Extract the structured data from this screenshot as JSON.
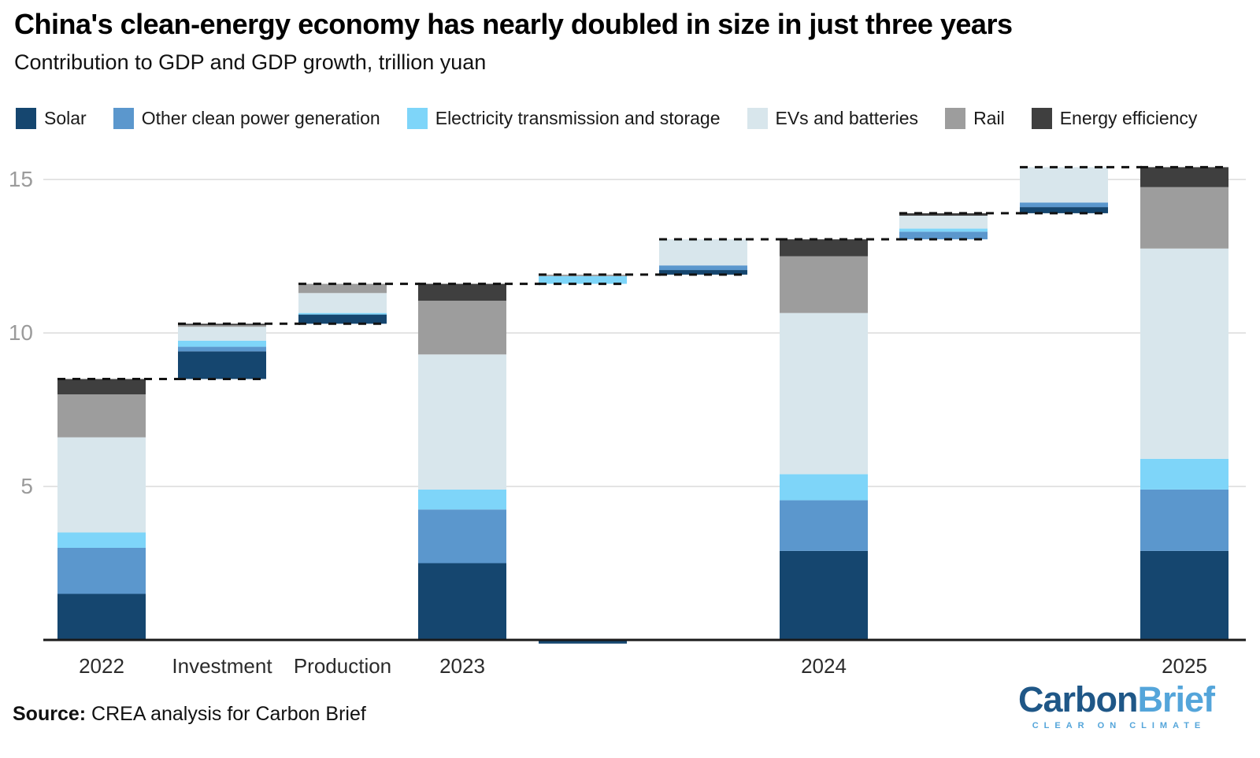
{
  "header": {
    "title": "China's clean-energy economy has nearly doubled in size in just three years",
    "subtitle": "Contribution to GDP and GDP growth, trillion yuan"
  },
  "legend": [
    {
      "label": "Solar",
      "color": "#15466f"
    },
    {
      "label": "Other clean power generation",
      "color": "#5b97cd"
    },
    {
      "label": "Electricity transmission and storage",
      "color": "#7ed5f9"
    },
    {
      "label": "EVs and batteries",
      "color": "#d8e6ec"
    },
    {
      "label": "Rail",
      "color": "#9d9d9d"
    },
    {
      "label": "Energy efficiency",
      "color": "#3f3f3f"
    }
  ],
  "chart_data": {
    "type": "bar",
    "subtype": "stacked-waterfall",
    "title": "Contribution to GDP and GDP growth",
    "unit": "trillion yuan",
    "ylim": [
      0,
      15.5
    ],
    "y_ticks": [
      5,
      10,
      15
    ],
    "grid": true,
    "series_names": [
      "Solar",
      "Other clean power generation",
      "Electricity transmission and storage",
      "EVs and batteries",
      "Rail",
      "Energy efficiency"
    ],
    "bars": [
      {
        "label": "2022",
        "base": 0,
        "values": [
          1.5,
          1.5,
          0.5,
          3.1,
          1.4,
          0.5
        ],
        "total": 8.5
      },
      {
        "label": "Investment",
        "base": 8.5,
        "values": [
          0.9,
          0.15,
          0.2,
          0.45,
          0.05,
          0.05
        ],
        "total": 10.3
      },
      {
        "label": "Production",
        "base": 10.3,
        "values": [
          0.3,
          0,
          0.05,
          0.65,
          0.3,
          0
        ],
        "total": 11.6
      },
      {
        "label": "2023",
        "base": 0,
        "values": [
          2.5,
          1.75,
          0.65,
          4.4,
          1.75,
          0.55
        ],
        "total": 11.6
      },
      {
        "label": "",
        "base": 11.6,
        "values": [
          0,
          0,
          0.25,
          0,
          0.05,
          0
        ],
        "negative_solar": -0.12,
        "total": 11.9
      },
      {
        "label": "",
        "base": 11.9,
        "values": [
          0.15,
          0.15,
          0,
          0.85,
          0,
          0
        ],
        "total": 13.05
      },
      {
        "label": "2024",
        "base": 0,
        "values": [
          2.9,
          1.65,
          0.85,
          5.25,
          1.85,
          0.55
        ],
        "total": 13.05
      },
      {
        "label": "",
        "base": 13.05,
        "values": [
          0,
          0.25,
          0.1,
          0.42,
          0,
          0.08
        ],
        "total": 13.9
      },
      {
        "label": "",
        "base": 13.9,
        "values": [
          0.2,
          0.15,
          0,
          1.15,
          0,
          0
        ],
        "total": 15.4
      },
      {
        "label": "2025",
        "base": 0,
        "values": [
          2.9,
          2.0,
          1.0,
          6.85,
          2.0,
          0.65
        ],
        "total": 15.4
      }
    ]
  },
  "footer": {
    "source_label": "Source:",
    "source_text": " CREA analysis for Carbon Brief"
  },
  "logo": {
    "part1": "Carbon",
    "part2": "Brief",
    "tagline": "CLEAR ON CLIMATE"
  },
  "colors": {
    "axis": "#1a1a1a",
    "gridline": "#e4e4e4",
    "dashed": "#111111",
    "tick_label": "#9b9b9b",
    "x_label": "#2b2b2b",
    "logo_dark": "#1f5787",
    "logo_light": "#54a5da"
  }
}
